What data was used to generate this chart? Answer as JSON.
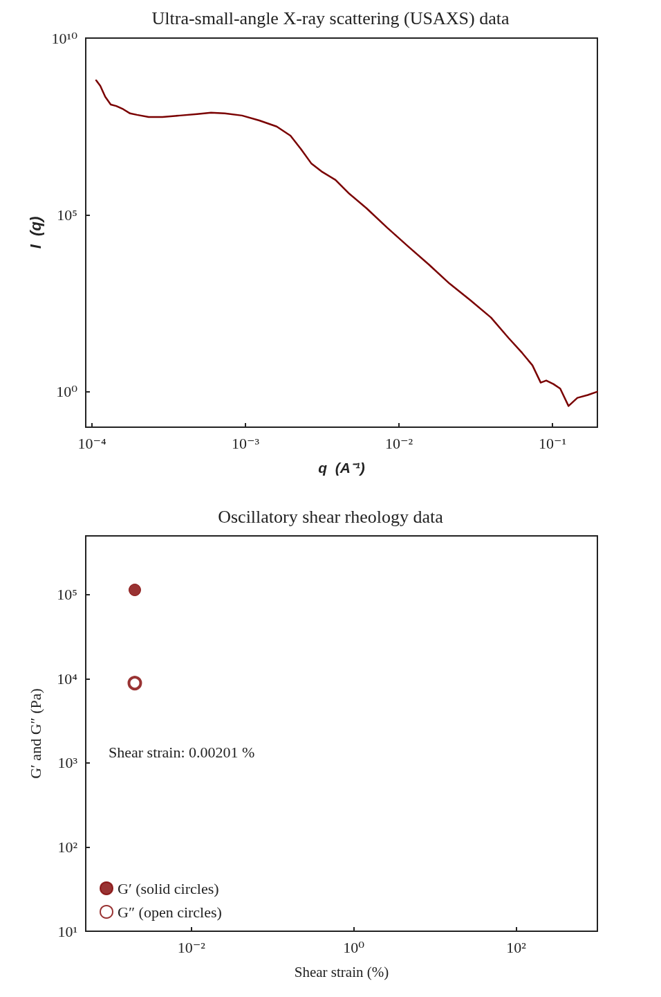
{
  "chart_data": [
    {
      "type": "line",
      "title": "Ultra-small-angle X-ray scattering (USAXS) data",
      "xlabel": "q  (A⁻¹)",
      "ylabel": "I  (q)",
      "log": "xy",
      "grid": false,
      "legend": false,
      "marker": "none",
      "line_style": "solid",
      "xlim": [
        9.1e-05,
        0.196
      ],
      "ylim": [
        0.1,
        10000000000.0
      ],
      "xticks": [
        {
          "value": 0.0001,
          "label": "10⁻⁴"
        },
        {
          "value": 0.001,
          "label": "10⁻³"
        },
        {
          "value": 0.01,
          "label": "10⁻²"
        },
        {
          "value": 0.1,
          "label": "10⁻¹"
        }
      ],
      "yticks": [
        {
          "value": 1,
          "label": "10⁰"
        },
        {
          "value": 100000,
          "label": "10⁵"
        },
        {
          "value": 10000000000,
          "label": "10¹⁰"
        }
      ],
      "series": [
        {
          "color": "#7a0000",
          "x": [
            0.0001064,
            0.0001132,
            0.0001219,
            0.0001324,
            0.0001439,
            0.0001596,
            0.000177,
            0.0001963,
            0.0002339,
            0.0002877,
            0.0003733,
            0.0004842,
            0.0005957,
            0.0007328,
            0.0009484,
            0.00123,
            0.001596,
            0.001963,
            0.002291,
            0.002679,
            0.003126,
            0.003855,
            0.004742,
            0.006138,
            0.008375,
            0.01146,
            0.01563,
            0.02133,
            0.02911,
            0.03972,
            0.05152,
            0.06339,
            0.07396,
            0.08375,
            0.09099,
            0.1012,
            0.1122,
            0.1271,
            0.1452,
            0.1698,
            0.195
          ],
          "values": [
            641000000.0,
            447000000.0,
            219000000.0,
            132000000.0,
            120000000.0,
            97700000.0,
            74100000.0,
            67600000.0,
            58900000.0,
            58900000.0,
            64600000.0,
            70800000.0,
            77600000.0,
            74100000.0,
            64600000.0,
            46800000.0,
            31600000.0,
            17400000.0,
            7410000.0,
            2880000.0,
            1700000.0,
            977000.0,
            398000.0,
            155000.0,
            43700.0,
            12900.0,
            3981,
            1148,
            389,
            126,
            33.9,
            12.6,
            5.62,
            1.82,
            2.09,
            1.66,
            1.23,
            0.398,
            0.676,
            0.813,
            1.0
          ]
        }
      ]
    },
    {
      "type": "scatter",
      "title": "Oscillatory shear rheology data",
      "xlabel": "Shear strain (%)",
      "ylabel": "G′ and G″ (Pa)",
      "log": "xy",
      "grid": false,
      "legend": "bottom left",
      "marker": "circle",
      "annotations": [
        "Shear strain: 0.00201 %"
      ],
      "xlim": [
        0.0005,
        1000
      ],
      "ylim": [
        10,
        500000
      ],
      "xticks": [
        {
          "value": 0.01,
          "label": "10⁻²"
        },
        {
          "value": 1,
          "label": "10⁰"
        },
        {
          "value": 100,
          "label": "10²"
        }
      ],
      "yticks": [
        {
          "value": 10,
          "label": "10¹"
        },
        {
          "value": 100,
          "label": "10²"
        },
        {
          "value": 1000,
          "label": "10³"
        },
        {
          "value": 10000,
          "label": "10⁴"
        },
        {
          "value": 100000,
          "label": "10⁵"
        }
      ],
      "series": [
        {
          "name": "G′ (solid circles)",
          "color": "#800000",
          "x": [
            0.00201
          ],
          "values": [
            114000
          ]
        },
        {
          "name": "G″ (open circles)",
          "color": "#800000",
          "x": [
            0.00201
          ],
          "values": [
            8900
          ]
        }
      ]
    }
  ]
}
